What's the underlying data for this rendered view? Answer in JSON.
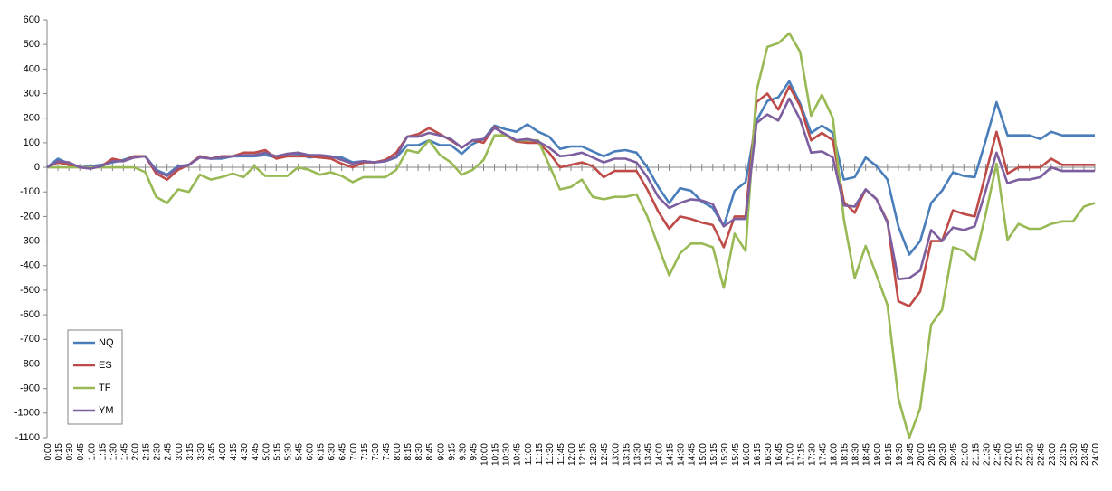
{
  "chart_data": {
    "type": "line",
    "categories": [
      "0:00",
      "0:15",
      "0:30",
      "0:45",
      "1:00",
      "1:15",
      "1:30",
      "1:45",
      "2:00",
      "2:15",
      "2:30",
      "2:45",
      "3:00",
      "3:15",
      "3:30",
      "3:45",
      "4:00",
      "4:15",
      "4:30",
      "4:45",
      "5:00",
      "5:15",
      "5:30",
      "5:45",
      "6:00",
      "6:15",
      "6:30",
      "6:45",
      "7:00",
      "7:15",
      "7:30",
      "7:45",
      "8:00",
      "8:15",
      "8:30",
      "8:45",
      "9:00",
      "9:15",
      "9:30",
      "9:45",
      "10:00",
      "10:15",
      "10:30",
      "10:45",
      "11:00",
      "11:15",
      "11:30",
      "11:45",
      "12:00",
      "12:15",
      "12:30",
      "12:45",
      "13:00",
      "13:15",
      "13:30",
      "13:45",
      "14:00",
      "14:15",
      "14:30",
      "14:45",
      "15:00",
      "15:15",
      "15:30",
      "15:45",
      "16:00",
      "16:15",
      "16:30",
      "16:45",
      "17:00",
      "17:15",
      "17:30",
      "17:45",
      "18:00",
      "18:15",
      "18:30",
      "18:45",
      "19:00",
      "19:15",
      "19:30",
      "19:45",
      "20:00",
      "20:15",
      "20:30",
      "20:45",
      "21:00",
      "21:15",
      "21:30",
      "21:45",
      "22:00",
      "22:15",
      "22:30",
      "22:45",
      "23:00",
      "23:15",
      "23:30",
      "23:45",
      "24:00"
    ],
    "series": [
      {
        "name": "NQ",
        "color": "#4a7ebb",
        "values": [
          0,
          35,
          15,
          0,
          5,
          10,
          20,
          30,
          45,
          45,
          -10,
          -30,
          5,
          10,
          45,
          35,
          35,
          45,
          45,
          45,
          50,
          40,
          55,
          55,
          40,
          45,
          40,
          40,
          20,
          25,
          20,
          25,
          40,
          90,
          90,
          110,
          90,
          90,
          55,
          95,
          115,
          170,
          155,
          145,
          175,
          145,
          125,
          75,
          85,
          85,
          65,
          45,
          65,
          70,
          60,
          0,
          -80,
          -145,
          -85,
          -95,
          -140,
          -165,
          -240,
          -95,
          -60,
          190,
          270,
          285,
          350,
          260,
          140,
          170,
          140,
          -50,
          -40,
          40,
          5,
          -50,
          -240,
          -355,
          -300,
          -145,
          -95,
          -20,
          -35,
          -40,
          110,
          265,
          130,
          130,
          130,
          115,
          145,
          130,
          130,
          130,
          130
        ]
      },
      {
        "name": "ES",
        "color": "#be4b48",
        "values": [
          0,
          20,
          10,
          0,
          -5,
          5,
          35,
          25,
          45,
          45,
          -25,
          -50,
          -10,
          10,
          45,
          35,
          45,
          45,
          60,
          60,
          70,
          35,
          45,
          45,
          45,
          40,
          35,
          15,
          0,
          20,
          20,
          30,
          60,
          125,
          135,
          160,
          135,
          110,
          80,
          110,
          100,
          165,
          130,
          105,
          100,
          100,
          60,
          0,
          10,
          20,
          5,
          -40,
          -15,
          -15,
          -15,
          -90,
          -180,
          -250,
          -200,
          -210,
          -225,
          -235,
          -325,
          -200,
          -200,
          265,
          300,
          235,
          330,
          250,
          110,
          140,
          110,
          -140,
          -185,
          -90,
          -130,
          -220,
          -545,
          -565,
          -505,
          -300,
          -300,
          -175,
          -190,
          -200,
          -25,
          145,
          -25,
          0,
          0,
          0,
          35,
          10,
          10,
          10,
          10
        ]
      },
      {
        "name": "TF",
        "color": "#98b954",
        "values": [
          0,
          0,
          0,
          0,
          0,
          0,
          0,
          0,
          0,
          -20,
          -120,
          -145,
          -90,
          -100,
          -30,
          -50,
          -40,
          -25,
          -40,
          5,
          -35,
          -35,
          -35,
          0,
          -10,
          -30,
          -20,
          -35,
          -60,
          -40,
          -40,
          -40,
          -10,
          70,
          60,
          110,
          50,
          20,
          -30,
          -10,
          30,
          130,
          130,
          110,
          110,
          110,
          10,
          -90,
          -80,
          -50,
          -120,
          -130,
          -120,
          -120,
          -110,
          -200,
          -320,
          -440,
          -350,
          -310,
          -310,
          -325,
          -490,
          -270,
          -340,
          310,
          490,
          505,
          545,
          470,
          210,
          295,
          200,
          -210,
          -450,
          -320,
          -440,
          -560,
          -940,
          -1100,
          -980,
          -640,
          -580,
          -325,
          -340,
          -380,
          -190,
          15,
          -295,
          -230,
          -250,
          -250,
          -230,
          -220,
          -220,
          -160,
          -145
        ]
      },
      {
        "name": "YM",
        "color": "#7d5fa0",
        "values": [
          0,
          25,
          20,
          0,
          -5,
          5,
          25,
          25,
          40,
          45,
          -15,
          -35,
          0,
          10,
          40,
          35,
          40,
          45,
          50,
          50,
          60,
          45,
          55,
          60,
          50,
          50,
          45,
          30,
          15,
          25,
          20,
          25,
          45,
          125,
          125,
          140,
          130,
          115,
          80,
          110,
          115,
          160,
          135,
          110,
          115,
          105,
          80,
          45,
          50,
          60,
          40,
          20,
          35,
          35,
          20,
          -40,
          -120,
          -165,
          -145,
          -130,
          -135,
          -150,
          -240,
          -210,
          -210,
          180,
          215,
          190,
          280,
          195,
          60,
          65,
          40,
          -155,
          -160,
          -90,
          -130,
          -225,
          -455,
          -450,
          -420,
          -255,
          -300,
          -245,
          -255,
          -240,
          -95,
          60,
          -65,
          -50,
          -50,
          -40,
          0,
          -15,
          -15,
          -15,
          -15
        ]
      }
    ],
    "ylim": [
      -1100,
      600
    ],
    "yticks": [
      600,
      500,
      400,
      300,
      200,
      100,
      0,
      -100,
      -200,
      -300,
      -400,
      -500,
      -600,
      -700,
      -800,
      -900,
      -1000,
      -1100
    ],
    "grid": false,
    "legend": "lower left"
  }
}
